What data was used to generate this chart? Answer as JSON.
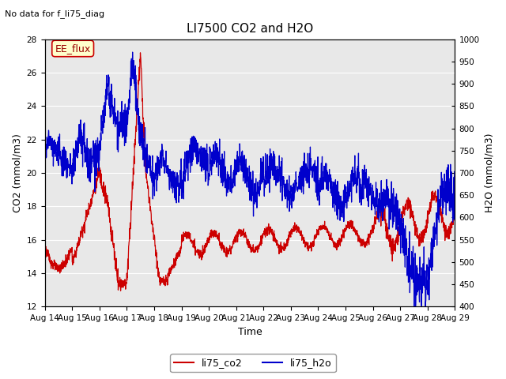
{
  "title": "LI7500 CO2 and H2O",
  "subtitle": "No data for f_li75_diag",
  "xlabel": "Time",
  "ylabel_left": "CO2 (mmol/m3)",
  "ylabel_right": "H2O (mmol/m3)",
  "ylim_left": [
    12,
    28
  ],
  "ylim_right": [
    400,
    1000
  ],
  "yticks_left": [
    12,
    14,
    16,
    18,
    20,
    22,
    24,
    26,
    28
  ],
  "yticks_right": [
    400,
    450,
    500,
    550,
    600,
    650,
    700,
    750,
    800,
    850,
    900,
    950,
    1000
  ],
  "legend_entries": [
    "li75_co2",
    "li75_h2o"
  ],
  "legend_colors": [
    "#cc0000",
    "#0000cc"
  ],
  "annotation_text": "EE_flux",
  "annotation_box_facecolor": "#ffffcc",
  "annotation_box_edgecolor": "#cc0000",
  "color_co2": "#cc0000",
  "color_h2o": "#0000cc",
  "background_color": "#e8e8e8",
  "grid_color": "white",
  "linewidth": 0.9,
  "figsize": [
    6.4,
    4.8
  ],
  "dpi": 100
}
